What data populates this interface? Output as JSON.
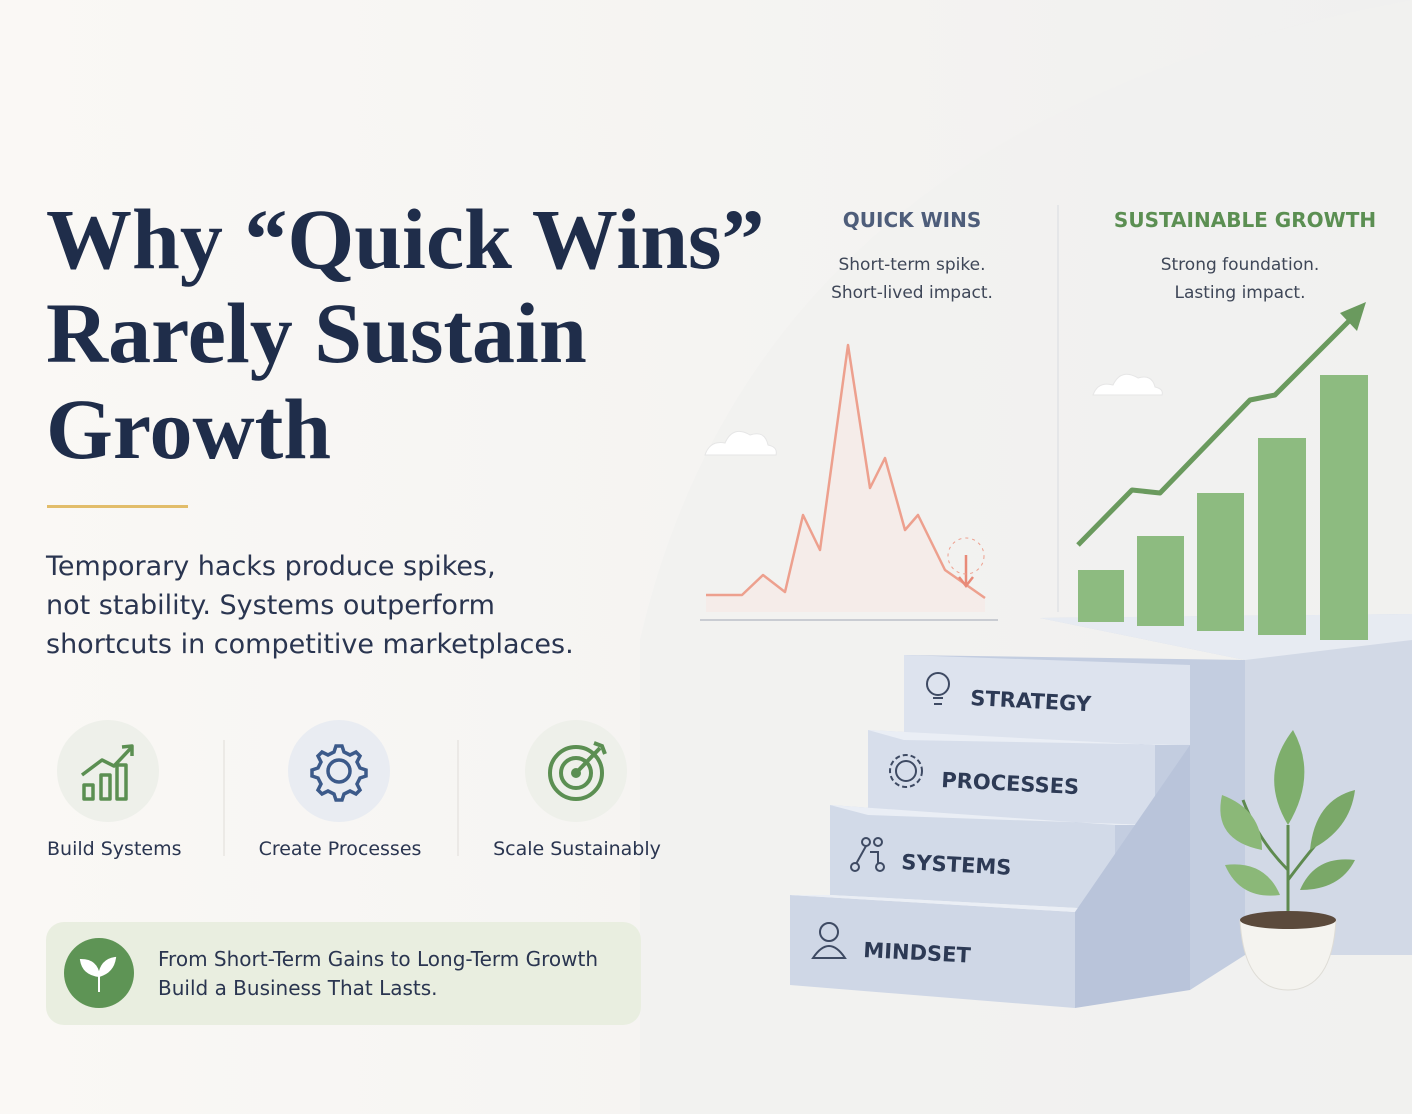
{
  "header": {
    "title_lines": [
      "Why “Quick Wins”",
      "Rarely Sustain",
      "Growth"
    ],
    "description_lines": [
      "Temporary hacks produce spikes,",
      "not stability. Systems outperform",
      "shortcuts in competitive marketplaces."
    ]
  },
  "features": [
    {
      "label": "Build Systems"
    },
    {
      "label": "Create Processes"
    },
    {
      "label": "Scale Sustainably"
    }
  ],
  "callout": {
    "lines": [
      "From Short-Term Gains to Long-Term Growth",
      "Build a Business That Lasts."
    ]
  },
  "panels": [
    {
      "title": "QUICK WINS",
      "lines": [
        "Short-term spike.",
        "Short-lived impact."
      ]
    },
    {
      "title": "SUSTAINABLE GROWTH",
      "lines": [
        "Strong foundation.",
        "Lasting impact."
      ]
    }
  ],
  "steps": [
    "STRATEGY",
    "PROCESSES",
    "SYSTEMS",
    "MINDSET"
  ]
}
